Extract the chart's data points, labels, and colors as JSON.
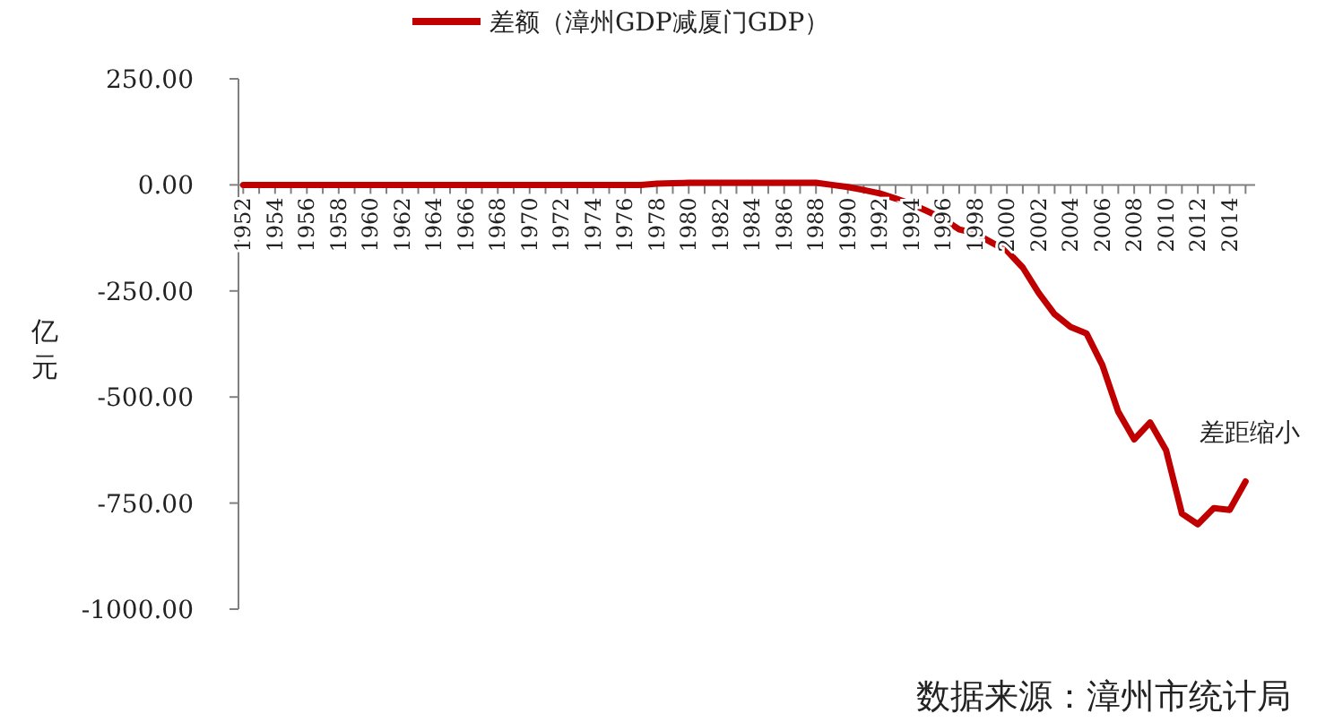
{
  "chart_data": {
    "type": "line",
    "ylabel": "亿元",
    "legend": "top",
    "marker": "none",
    "line_style": "solid",
    "grid": false,
    "x": [
      1952,
      1953,
      1954,
      1955,
      1956,
      1957,
      1958,
      1959,
      1960,
      1961,
      1962,
      1963,
      1964,
      1965,
      1966,
      1967,
      1968,
      1969,
      1970,
      1971,
      1972,
      1973,
      1974,
      1975,
      1976,
      1977,
      1978,
      1979,
      1980,
      1981,
      1982,
      1983,
      1984,
      1985,
      1986,
      1987,
      1988,
      1989,
      1990,
      1991,
      1992,
      1993,
      1994,
      1995,
      1996,
      1997,
      1998,
      1999,
      2000,
      2001,
      2002,
      2003,
      2004,
      2005,
      2006,
      2007,
      2008,
      2009,
      2010,
      2011,
      2012,
      2013,
      2014,
      2015
    ],
    "series": [
      {
        "name": "差额（漳州GDP减厦门GDP）",
        "color": "#c00000",
        "values": [
          0,
          0,
          0,
          0,
          0,
          0,
          0,
          0,
          0,
          0,
          0,
          0,
          0,
          0,
          0,
          0,
          0,
          0,
          0,
          0,
          0,
          0,
          0,
          0,
          0,
          0,
          3,
          4,
          5,
          5,
          5,
          5,
          5,
          5,
          5,
          5,
          5,
          0,
          -5,
          -12,
          -20,
          -32,
          -45,
          -62,
          -80,
          -105,
          -114,
          -135,
          -155,
          -195,
          -255,
          -305,
          -335,
          -350,
          -425,
          -535,
          -600,
          -560,
          -625,
          -775,
          -800,
          -762,
          -766,
          -699
        ]
      }
    ],
    "ylim": [
      -1000,
      250
    ],
    "yticks": [
      {
        "value": 250,
        "label": "250.00"
      },
      {
        "value": 0,
        "label": "0.00"
      },
      {
        "value": -250,
        "label": "-250.00"
      },
      {
        "value": -500,
        "label": "-500.00"
      },
      {
        "value": -750,
        "label": "-750.00"
      },
      {
        "value": -1000,
        "label": "-1000.00"
      }
    ],
    "xlim": [
      1951.7,
      2015.6
    ],
    "xticks": [
      1952,
      {
        "value": 1953,
        "label": null
      },
      1954,
      {
        "value": 1955,
        "label": null
      },
      1956,
      {
        "value": 1957,
        "label": null
      },
      1958,
      {
        "value": 1959,
        "label": null
      },
      1960,
      {
        "value": 1961,
        "label": null
      },
      1962,
      {
        "value": 1963,
        "label": null
      },
      1964,
      {
        "value": 1965,
        "label": null
      },
      1966,
      {
        "value": 1967,
        "label": null
      },
      1968,
      {
        "value": 1969,
        "label": null
      },
      1970,
      {
        "value": 1971,
        "label": null
      },
      1972,
      {
        "value": 1973,
        "label": null
      },
      1974,
      {
        "value": 1975,
        "label": null
      },
      1976,
      {
        "value": 1977,
        "label": null
      },
      1978,
      {
        "value": 1979,
        "label": null
      },
      1980,
      {
        "value": 1981,
        "label": null
      },
      1982,
      {
        "value": 1983,
        "label": null
      },
      1984,
      {
        "value": 1985,
        "label": null
      },
      1986,
      {
        "value": 1987,
        "label": null
      },
      1988,
      {
        "value": 1989,
        "label": null
      },
      1990,
      {
        "value": 1991,
        "label": null
      },
      1992,
      {
        "value": 1993,
        "label": null
      },
      1994,
      {
        "value": 1995,
        "label": null
      },
      1996,
      {
        "value": 1997,
        "label": null
      },
      1998,
      {
        "value": 1999,
        "label": null
      },
      2000,
      {
        "value": 2001,
        "label": null
      },
      2002,
      {
        "value": 2003,
        "label": null
      },
      2004,
      {
        "value": 2005,
        "label": null
      },
      2006,
      {
        "value": 2007,
        "label": null
      },
      2008,
      {
        "value": 2009,
        "label": null
      },
      2010,
      {
        "value": 2011,
        "label": null
      },
      2012,
      {
        "value": 2013,
        "label": null
      },
      2014,
      {
        "value": 2015,
        "label": null
      }
    ],
    "annotations": [
      "差距缩小",
      "数据来源：漳州市统计局"
    ]
  }
}
